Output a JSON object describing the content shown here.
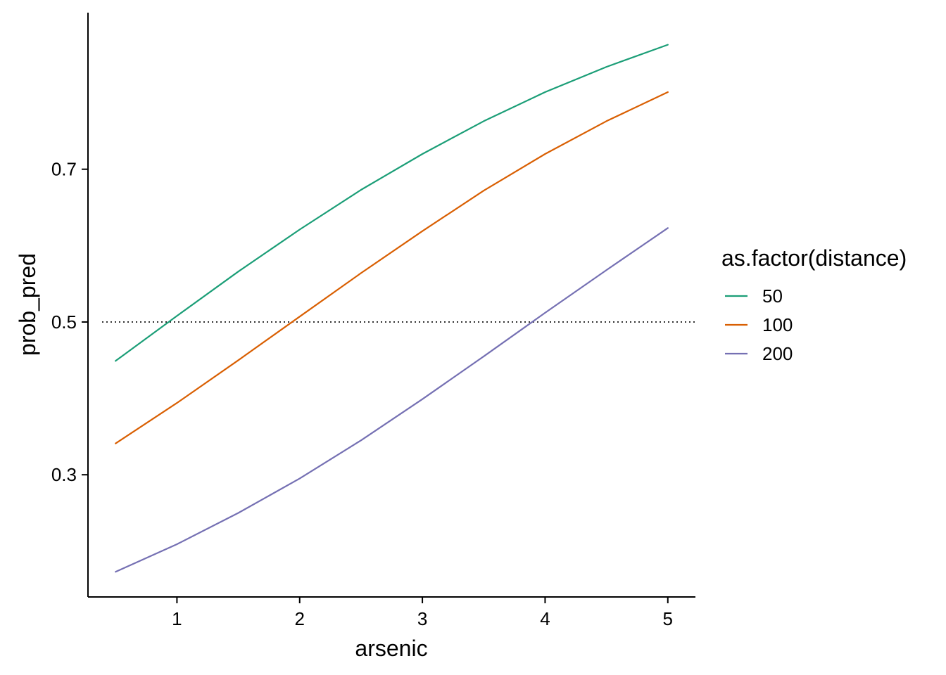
{
  "chart_data": {
    "type": "line",
    "xlabel": "arsenic",
    "ylabel": "prob_pred",
    "xlim": [
      0.275,
      5.225
    ],
    "ylim": [
      0.14,
      0.905
    ],
    "x_ticks": [
      1,
      2,
      3,
      4,
      5
    ],
    "y_ticks": [
      0.3,
      0.5,
      0.7
    ],
    "grid": false,
    "reference_line": {
      "y": 0.5,
      "style": "dotted"
    },
    "legend": {
      "title": "as.factor(distance)",
      "placement": "right"
    },
    "x": [
      0.5,
      1.0,
      1.5,
      2.0,
      2.5,
      3.0,
      3.5,
      4.0,
      4.5,
      5.0
    ],
    "series": [
      {
        "name": "50",
        "color": "#1B9E77",
        "values": [
          0.449,
          0.508,
          0.566,
          0.621,
          0.673,
          0.72,
          0.763,
          0.801,
          0.834,
          0.863
        ]
      },
      {
        "name": "100",
        "color": "#D95F02",
        "values": [
          0.341,
          0.394,
          0.45,
          0.507,
          0.564,
          0.619,
          0.672,
          0.72,
          0.763,
          0.801
        ]
      },
      {
        "name": "200",
        "color": "#7570B3",
        "values": [
          0.173,
          0.209,
          0.25,
          0.295,
          0.345,
          0.399,
          0.455,
          0.512,
          0.568,
          0.623
        ]
      }
    ]
  }
}
